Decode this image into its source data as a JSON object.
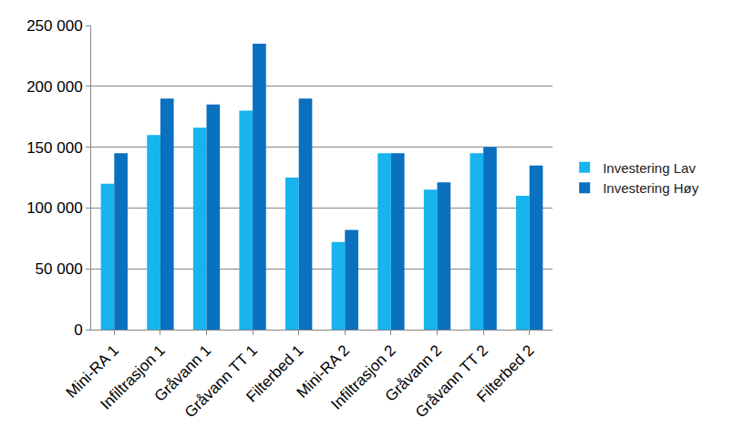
{
  "chart_data": {
    "type": "bar",
    "categories": [
      "Mini-RA 1",
      "Infiltrasjon 1",
      "Gråvann 1",
      "Gråvann TT 1",
      "Filterbed 1",
      "Mini-RA 2",
      "Infiltrasjon 2",
      "Gråvann 2",
      "Gråvann TT 2",
      "Filterbed 2"
    ],
    "series": [
      {
        "name": "Investering Lav",
        "color": "#17b4ee",
        "values": [
          120000,
          160000,
          166000,
          180000,
          125000,
          72000,
          145000,
          115000,
          145000,
          110000
        ]
      },
      {
        "name": "Investering Høy",
        "color": "#0a70c0",
        "values": [
          145000,
          190000,
          185000,
          235000,
          190000,
          82000,
          145000,
          121000,
          150000,
          135000
        ]
      }
    ],
    "ylim": [
      0,
      250000
    ],
    "yticks": [
      0,
      {
        "value": 50000,
        "label": "50 000"
      },
      {
        "value": 100000,
        "label": "100 000"
      },
      {
        "value": 150000,
        "label": "150 000"
      },
      {
        "value": 200000,
        "label": "200 000"
      },
      {
        "value": 250000,
        "label": "250 000"
      }
    ],
    "grid": true,
    "legend": "right"
  }
}
